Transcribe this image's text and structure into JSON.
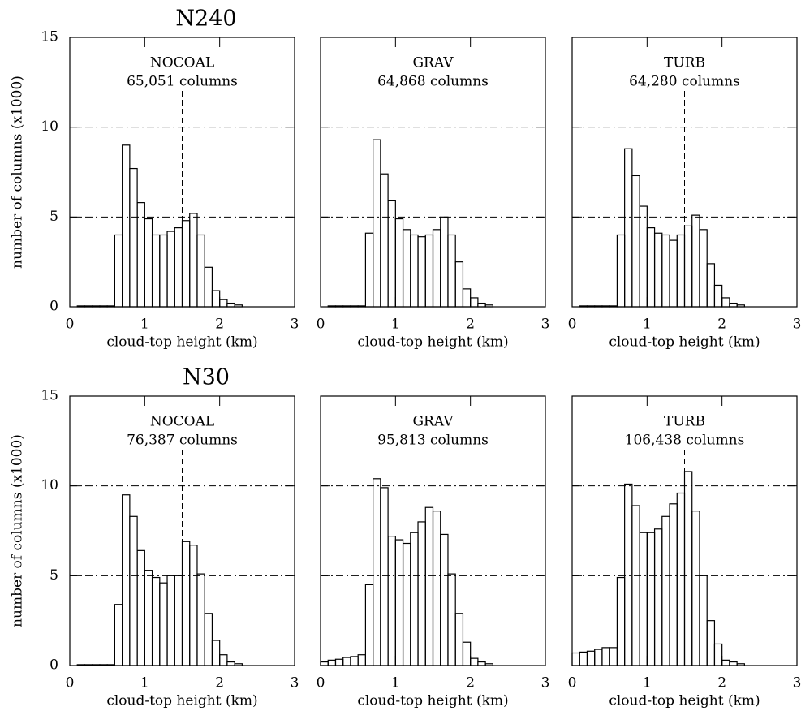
{
  "chart_data": [
    {
      "type": "histogram",
      "title": "N240",
      "panel_label": "NOCOAL",
      "count_label": "65,051 columns",
      "xlabel": "cloud-top height (km)",
      "ylabel": "number of columns (x1000)",
      "bins": [
        0,
        0.1,
        0.2,
        0.3,
        0.4,
        0.5,
        0.6,
        0.7,
        0.8,
        0.9,
        1,
        1.1,
        1.2,
        1.3,
        1.4,
        1.5,
        1.6,
        1.7,
        1.8,
        1.9,
        2,
        2.1,
        2.2,
        2.3,
        2.4,
        2.5,
        2.6,
        2.7,
        2.8,
        2.9,
        3
      ],
      "values": [
        0,
        0.05,
        0.05,
        0.05,
        0.05,
        0.05,
        4.0,
        9.0,
        7.7,
        5.8,
        4.9,
        4.0,
        4.0,
        4.2,
        4.4,
        4.8,
        5.2,
        4.0,
        2.2,
        0.9,
        0.4,
        0.2,
        0.1,
        0,
        0,
        0,
        0,
        0,
        0,
        0
      ],
      "color": "#000000",
      "xlim": [
        0,
        3
      ],
      "ylim": [
        0,
        15
      ],
      "xticks": [
        0,
        1,
        2,
        3
      ],
      "yticks": [
        0,
        5,
        10,
        15
      ],
      "hlines": [
        5,
        10
      ],
      "vline": 1.5
    },
    {
      "type": "histogram",
      "panel_label": "GRAV",
      "count_label": "64,868 columns",
      "xlabel": "cloud-top height (km)",
      "bins": [
        0,
        0.1,
        0.2,
        0.3,
        0.4,
        0.5,
        0.6,
        0.7,
        0.8,
        0.9,
        1,
        1.1,
        1.2,
        1.3,
        1.4,
        1.5,
        1.6,
        1.7,
        1.8,
        1.9,
        2,
        2.1,
        2.2,
        2.3,
        2.4,
        2.5,
        2.6,
        2.7,
        2.8,
        2.9,
        3
      ],
      "values": [
        0,
        0.05,
        0.05,
        0.05,
        0.05,
        0.05,
        4.1,
        9.3,
        7.4,
        5.9,
        4.9,
        4.3,
        4.0,
        3.9,
        4.0,
        4.3,
        5.0,
        4.0,
        2.5,
        1.0,
        0.5,
        0.2,
        0.1,
        0,
        0,
        0,
        0,
        0,
        0,
        0
      ],
      "color": "#000000",
      "xlim": [
        0,
        3
      ],
      "ylim": [
        0,
        15
      ],
      "xticks": [
        0,
        1,
        2,
        3
      ],
      "yticks": [
        0,
        5,
        10,
        15
      ],
      "hlines": [
        5,
        10
      ],
      "vline": 1.5
    },
    {
      "type": "histogram",
      "panel_label": "TURB",
      "count_label": "64,280 columns",
      "xlabel": "cloud-top height (km)",
      "bins": [
        0,
        0.1,
        0.2,
        0.3,
        0.4,
        0.5,
        0.6,
        0.7,
        0.8,
        0.9,
        1,
        1.1,
        1.2,
        1.3,
        1.4,
        1.5,
        1.6,
        1.7,
        1.8,
        1.9,
        2,
        2.1,
        2.2,
        2.3,
        2.4,
        2.5,
        2.6,
        2.7,
        2.8,
        2.9,
        3
      ],
      "values": [
        0,
        0.05,
        0.05,
        0.05,
        0.05,
        0.05,
        4.0,
        8.8,
        7.3,
        5.6,
        4.4,
        4.1,
        4.0,
        3.7,
        4.0,
        4.5,
        5.1,
        4.3,
        2.4,
        1.2,
        0.5,
        0.2,
        0.1,
        0,
        0,
        0,
        0,
        0,
        0,
        0
      ],
      "color": "#000000",
      "xlim": [
        0,
        3
      ],
      "ylim": [
        0,
        15
      ],
      "xticks": [
        0,
        1,
        2,
        3
      ],
      "yticks": [
        0,
        5,
        10,
        15
      ],
      "hlines": [
        5,
        10
      ],
      "vline": 1.5
    },
    {
      "type": "histogram",
      "title": "N30",
      "panel_label": "NOCOAL",
      "count_label": "76,387 columns",
      "xlabel": "cloud-top height (km)",
      "ylabel": "number of columns (x1000)",
      "bins": [
        0,
        0.1,
        0.2,
        0.3,
        0.4,
        0.5,
        0.6,
        0.7,
        0.8,
        0.9,
        1,
        1.1,
        1.2,
        1.3,
        1.4,
        1.5,
        1.6,
        1.7,
        1.8,
        1.9,
        2,
        2.1,
        2.2,
        2.3,
        2.4,
        2.5,
        2.6,
        2.7,
        2.8,
        2.9,
        3
      ],
      "values": [
        0,
        0.05,
        0.05,
        0.05,
        0.05,
        0.05,
        3.4,
        9.5,
        8.3,
        6.4,
        5.3,
        4.9,
        4.6,
        5.0,
        5.0,
        6.9,
        6.7,
        5.1,
        2.9,
        1.4,
        0.6,
        0.2,
        0.1,
        0,
        0,
        0,
        0,
        0,
        0,
        0
      ],
      "color": "#000000",
      "xlim": [
        0,
        3
      ],
      "ylim": [
        0,
        15
      ],
      "xticks": [
        0,
        1,
        2,
        3
      ],
      "yticks": [
        0,
        5,
        10,
        15
      ],
      "hlines": [
        5,
        10
      ],
      "vline": 1.5
    },
    {
      "type": "histogram",
      "panel_label": "GRAV",
      "count_label": "95,813 columns",
      "xlabel": "cloud-top height (km)",
      "bins": [
        0,
        0.1,
        0.2,
        0.3,
        0.4,
        0.5,
        0.6,
        0.7,
        0.8,
        0.9,
        1,
        1.1,
        1.2,
        1.3,
        1.4,
        1.5,
        1.6,
        1.7,
        1.8,
        1.9,
        2,
        2.1,
        2.2,
        2.3,
        2.4,
        2.5,
        2.6,
        2.7,
        2.8,
        2.9,
        3
      ],
      "values": [
        0.2,
        0.3,
        0.35,
        0.45,
        0.5,
        0.6,
        4.5,
        10.4,
        9.9,
        7.2,
        7.0,
        6.8,
        7.4,
        8.0,
        8.8,
        8.6,
        7.3,
        5.1,
        2.9,
        1.3,
        0.4,
        0.2,
        0.1,
        0,
        0,
        0,
        0,
        0,
        0,
        0
      ],
      "color": "#000000",
      "xlim": [
        0,
        3
      ],
      "ylim": [
        0,
        15
      ],
      "xticks": [
        0,
        1,
        2,
        3
      ],
      "yticks": [
        0,
        5,
        10,
        15
      ],
      "hlines": [
        5,
        10
      ],
      "vline": 1.5
    },
    {
      "type": "histogram",
      "panel_label": "TURB",
      "count_label": "106,438 columns",
      "xlabel": "cloud-top height (km)",
      "bins": [
        0,
        0.1,
        0.2,
        0.3,
        0.4,
        0.5,
        0.6,
        0.7,
        0.8,
        0.9,
        1,
        1.1,
        1.2,
        1.3,
        1.4,
        1.5,
        1.6,
        1.7,
        1.8,
        1.9,
        2,
        2.1,
        2.2,
        2.3,
        2.4,
        2.5,
        2.6,
        2.7,
        2.8,
        2.9,
        3
      ],
      "values": [
        0.7,
        0.75,
        0.8,
        0.9,
        1.0,
        1.0,
        4.9,
        10.1,
        8.9,
        7.4,
        7.4,
        7.6,
        8.3,
        9.0,
        9.6,
        10.8,
        8.6,
        5.0,
        2.5,
        1.2,
        0.3,
        0.2,
        0.1,
        0,
        0,
        0,
        0,
        0,
        0,
        0
      ],
      "color": "#000000",
      "xlim": [
        0,
        3
      ],
      "ylim": [
        0,
        15
      ],
      "xticks": [
        0,
        1,
        2,
        3
      ],
      "yticks": [
        0,
        5,
        10,
        15
      ],
      "hlines": [
        5,
        10
      ],
      "vline": 1.5
    }
  ]
}
